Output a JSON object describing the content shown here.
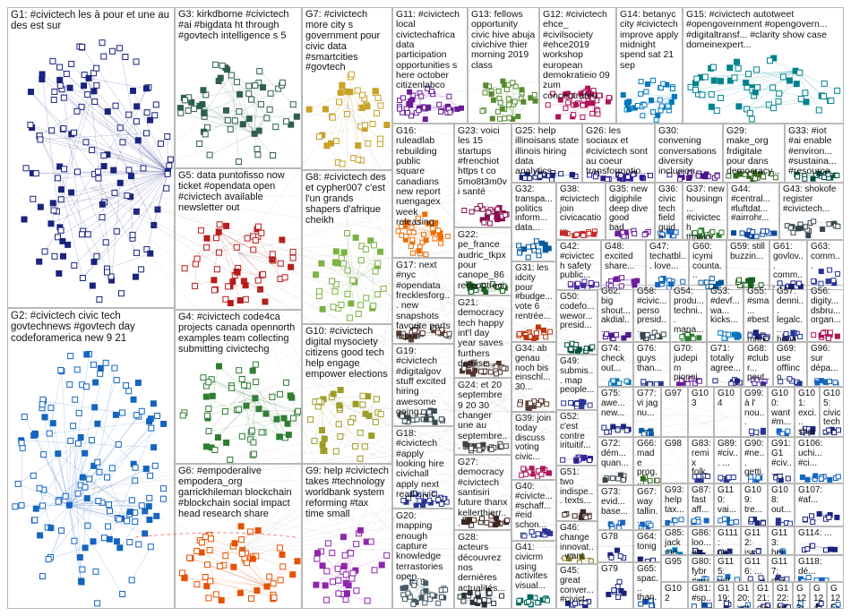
{
  "groups": [
    {
      "id": "G1",
      "label": "G1: #civictech les à pour et une au des est sur",
      "color": "#1a237e"
    },
    {
      "id": "G2",
      "label": "G2: #civictech civic tech govtechnews #govtech day codeforamerica new 9 21",
      "color": "#1565c0"
    },
    {
      "id": "G3",
      "label": "G3: kirkdborne #civictech #ai #bigdata ht through #govtech intelligence s 5",
      "color": "#2e5e4e"
    },
    {
      "id": "G4",
      "label": "G4: #civictech code4ca projects canada opennorth examples team collecting submitting civictechg",
      "color": "#2e7d32"
    },
    {
      "id": "G5",
      "label": "G5: data puntofisso now ticket #opendata open #civictech available newsletter out",
      "color": "#b71c1c"
    },
    {
      "id": "G6",
      "label": "G6: #empoderalive empodera_org garrickhileman blockchain #blockchain social impact head research share",
      "color": "#e65100"
    },
    {
      "id": "G7",
      "label": "G7: #civictech more city s government pour civic data #smartcities #govtech",
      "color": "#c9a227"
    },
    {
      "id": "G8",
      "label": "G8: #civictech des et cypher007 c'est l'un grands shapers d'afrique cheikh",
      "color": "#7cb342"
    },
    {
      "id": "G9",
      "label": "G9: help #civictech takes #technology worldbank system reforming #tax time small",
      "color": "#8e24aa"
    },
    {
      "id": "G10",
      "label": "G10: #civictech digital mysociety citizens good tech help engage empower elections",
      "color": "#9e9d24"
    },
    {
      "id": "G11",
      "label": "G11: #civictech local civictechafrica data participation opportunities s here october citizenlabco",
      "color": "#6a1b9a"
    },
    {
      "id": "G12",
      "label": "G12: #civictech ehce_ #civilsociety #ehce2019 workshop european demokratieio 09 zum concentrated",
      "color": "#ad1457"
    },
    {
      "id": "G13",
      "label": "G13: fellows opportunity civic hive abuja civichive thier morning 2019 class",
      "color": "#558b2f"
    },
    {
      "id": "G14",
      "label": "G14: betanyc city #civictech improve apply midnight spend sat 21 sep",
      "color": "#0277bd"
    },
    {
      "id": "G15",
      "label": "G15: #civictech autotweet #opengovernment #opengovern... #digitaltransf... #clarity show case domeinexpert...",
      "color": "#00838f"
    },
    {
      "id": "G16",
      "label": "G16: ruleadlab rebuilding public square canadians new report ruengagex week releasing",
      "color": "#ef6c00"
    },
    {
      "id": "G17",
      "label": "G17: next #nyc #opendata frecklesforg... new snapshots favorite parts report",
      "color": "#5d4037"
    },
    {
      "id": "G18",
      "label": "G18: #civictech #apply looking hire civichall apply next read civic...",
      "color": "#283593"
    },
    {
      "id": "G19",
      "label": "G19: #civictech #digitalgov stuff excited hiring awesome going...",
      "color": "#37474f"
    },
    {
      "id": "G20",
      "label": "G20: mapping enough capture knowledge terrastories open...",
      "color": "#455a64"
    },
    {
      "id": "G21",
      "label": "G21: democracy tech happy int'l day year saves furthers demise...",
      "color": "#4e342e"
    },
    {
      "id": "G22",
      "label": "G22: pe_france audric_tkpx pour canope_86 rencontreci... europarl_fr...",
      "color": "#1b5e20"
    },
    {
      "id": "G23",
      "label": "G23: voici les 15 startups #frenchiot https t co 5mo8t3m0vi santé",
      "color": "#880e4f"
    },
    {
      "id": "G24",
      "label": "G24: et 20 septembre 9 20 30 changer une au septembre...",
      "color": "#424242"
    },
    {
      "id": "G25",
      "label": "G25: help illinoisans state illinois hiring data analytics...",
      "color": "#1a237e"
    },
    {
      "id": "G26",
      "label": "G26: les sociaux et #civictech sont au coeur transformatio...",
      "color": "#311b92"
    },
    {
      "id": "G27",
      "label": "G27: democracy #civictech santisiri future thanx kellerthierr...",
      "color": "#3e2723"
    },
    {
      "id": "G28",
      "label": "G28: acteurs découvrez nos dernières actualités...",
      "color": "#263238"
    },
    {
      "id": "G29",
      "label": "G29: make_org frdigitale pour dans democracy...",
      "color": "#33691e"
    },
    {
      "id": "G30",
      "label": "G30: convening conversations diversity inclusion...",
      "color": "#4a148c"
    },
    {
      "id": "G31",
      "label": "G31: les idcity pour #budge... vote 6 rentrée...",
      "color": "#bf360c"
    },
    {
      "id": "G32",
      "label": "G32: transpa... politics inform... data...",
      "color": "#01579b"
    },
    {
      "id": "G33",
      "label": "G33: #iot #ai enable #environ... #sustaina... #resource...",
      "color": "#004d40"
    },
    {
      "id": "G34",
      "label": "G34: ab genau noch bis einschl... 30...",
      "color": "#5d4037"
    },
    {
      "id": "G35",
      "label": "G35: new digiphile deep dive good bad...",
      "color": "#6a1b9a"
    },
    {
      "id": "G36",
      "label": "G36: civic tech field guide crowdso...",
      "color": "#1565c0"
    },
    {
      "id": "G37",
      "label": "G37: new housingn... #civictech thanks...",
      "color": "#2e7d32"
    },
    {
      "id": "G38",
      "label": "G38: #civictech join civicacatio...",
      "color": "#c62828"
    },
    {
      "id": "G39",
      "label": "G39: join today discuss voting civic...",
      "color": "#ad1457"
    },
    {
      "id": "G40",
      "label": "G40: #civicte... #schaff... #eid schon...",
      "color": "#283593"
    },
    {
      "id": "G41",
      "label": "G41: civicrm using activites visual...",
      "color": "#00695c"
    },
    {
      "id": "G42",
      "label": "G42: #civictech safety public...",
      "color": "#4527a0"
    },
    {
      "id": "G43",
      "label": "G43: shokofe register #civictech...",
      "color": "#37474f"
    },
    {
      "id": "G44",
      "label": "G44: #central... #luftdat... #airrohr...",
      "color": "#0d47a1"
    },
    {
      "id": "G45",
      "label": "G45: great conver... #civict...",
      "color": "#1a237e"
    },
    {
      "id": "G46",
      "label": "G46: change innovat... want...",
      "color": "#827717"
    },
    {
      "id": "G47",
      "label": "G47: techatbl... love...",
      "color": "#1565c0"
    },
    {
      "id": "G48",
      "label": "G48: excited share...",
      "color": "#6a1b9a"
    },
    {
      "id": "G49",
      "label": "G49: submis... map people...",
      "color": "#283593"
    },
    {
      "id": "G50",
      "label": "G50: codefo... wewor... presid...",
      "color": "#004d40"
    },
    {
      "id": "G51",
      "label": "G51: two indispe... texts...",
      "color": "#3e2723"
    },
    {
      "id": "G52",
      "label": "G52: c'est contre irituitif...",
      "color": "#311b92"
    },
    {
      "id": "G53",
      "label": "G53: #devf... wa... kicks...",
      "color": "#0277bd"
    },
    {
      "id": "G54",
      "label": "G54: produ... techni... mana...",
      "color": "#2e7d32"
    },
    {
      "id": "G55",
      "label": "G55: #sma... #best... mark...",
      "color": "#1a237e"
    },
    {
      "id": "G56",
      "label": "G56: digity... dsbru... organ...",
      "color": "#ad1457"
    },
    {
      "id": "G57",
      "label": "G57: denni... legalc... boba...",
      "color": "#283593"
    },
    {
      "id": "G58",
      "label": "G58: #civic... perso presid...",
      "color": "#37474f"
    },
    {
      "id": "G59",
      "label": "G59: still buzzin...",
      "color": "#1b5e20"
    },
    {
      "id": "G60",
      "label": "G60: icymi counta...",
      "color": "#01579b"
    },
    {
      "id": "G61",
      "label": "G61: govlov... comm...",
      "color": "#1a237e"
    },
    {
      "id": "G62",
      "label": "G62: big shout... akdial...",
      "color": "#4a148c"
    },
    {
      "id": "G63",
      "label": "G63: comm...",
      "color": "#283593"
    },
    {
      "id": "G64",
      "label": "G64: tonig... amr...",
      "color": "#1a237e"
    },
    {
      "id": "G65",
      "label": "G65: spac... than...",
      "color": "#0d47a1"
    },
    {
      "id": "G66",
      "label": "G66: made prog...",
      "color": "#33691e"
    },
    {
      "id": "G67",
      "label": "G67: way tallin...",
      "color": "#1565c0"
    },
    {
      "id": "G68",
      "label": "G68: #clubr... peut...",
      "color": "#4527a0"
    },
    {
      "id": "G69",
      "label": "G69: use offlinco...",
      "color": "#283593"
    },
    {
      "id": "G70",
      "label": "G70: judepim pionni...",
      "color": "#6a1b9a"
    },
    {
      "id": "G71",
      "label": "G71: totally agree...",
      "color": "#1a237e"
    },
    {
      "id": "G72",
      "label": "G72: dém... quan...",
      "color": "#37474f"
    },
    {
      "id": "G73",
      "label": "G73: evid... base...",
      "color": "#1565c0"
    },
    {
      "id": "G74",
      "label": "G74: check out...",
      "color": "#0277bd"
    },
    {
      "id": "G75",
      "label": "G75: awe... new...",
      "color": "#1a237e"
    },
    {
      "id": "G76",
      "label": "G76: guys than...",
      "color": "#283593"
    },
    {
      "id": "G77",
      "label": "G77: vi jag nu...",
      "color": "#01579b"
    },
    {
      "id": "G78",
      "label": "G78",
      "color": "#1a237e"
    },
    {
      "id": "G79",
      "label": "G79",
      "color": "#1a237e"
    },
    {
      "id": "G80",
      "label": "G80: fybr #sm...",
      "color": "#1565c0"
    },
    {
      "id": "G81",
      "label": "G81: #sp... #civ...",
      "color": "#0d47a1"
    },
    {
      "id": "G82",
      "label": "G82: remix folk...",
      "color": "#1a237e"
    },
    {
      "id": "G83",
      "label": "G83: remix folk...",
      "color": "#283593"
    },
    {
      "id": "G84",
      "label": "G84: one valu...",
      "color": "#1565c0"
    },
    {
      "id": "G85",
      "label": "G85: jack mo...",
      "color": "#0277bd"
    },
    {
      "id": "G86",
      "label": "G86: loo... ew...",
      "color": "#1a237e"
    },
    {
      "id": "G87",
      "label": "G87: fast aff...",
      "color": "#1565c0"
    },
    {
      "id": "G88",
      "label": "G88",
      "color": "#1a237e"
    },
    {
      "id": "G89",
      "label": "G89: #civ... ...",
      "color": "#283593"
    },
    {
      "id": "G90",
      "label": "G90: #ne... getti...",
      "color": "#1565c0"
    },
    {
      "id": "G91",
      "label": "G91: G1 #civ... ...",
      "color": "#1a237e"
    },
    {
      "id": "G92",
      "label": "G92",
      "color": "#0d47a1"
    },
    {
      "id": "G93",
      "label": "G93: help tax...",
      "color": "#1565c0"
    },
    {
      "id": "G94",
      "label": "G94",
      "color": "#1a237e"
    },
    {
      "id": "G95",
      "label": "G95",
      "color": "#283593"
    },
    {
      "id": "G96",
      "label": "G96: sur dépa...",
      "color": "#1565c0"
    },
    {
      "id": "G97",
      "label": "G97",
      "color": "#1a237e"
    },
    {
      "id": "G98",
      "label": "G98",
      "color": "#1a237e"
    },
    {
      "id": "G99",
      "label": "G99: à l' nou...",
      "color": "#283593"
    },
    {
      "id": "G100",
      "label": "G100: want #m...",
      "color": "#1565c0"
    },
    {
      "id": "G101",
      "label": "G101: exci... shar...",
      "color": "#1a237e"
    },
    {
      "id": "G102",
      "label": "G102",
      "color": "#1a237e"
    },
    {
      "id": "G103",
      "label": "G103",
      "color": "#283593"
    },
    {
      "id": "G104",
      "label": "G104",
      "color": "#1565c0"
    },
    {
      "id": "G105",
      "label": "G105: civic tech...",
      "color": "#1a237e"
    },
    {
      "id": "G106",
      "label": "G106: uchi... #ci...",
      "color": "#1565c0"
    },
    {
      "id": "G107",
      "label": "G107: #af...",
      "color": "#1a237e"
    },
    {
      "id": "G108",
      "label": "G108: out...",
      "color": "#283593"
    },
    {
      "id": "G109",
      "label": "G109: tre...",
      "color": "#1a237e"
    },
    {
      "id": "G110",
      "label": "G110: vai...",
      "color": "#1565c0"
    },
    {
      "id": "G111",
      "label": "G111: pa...",
      "color": "#1a237e"
    },
    {
      "id": "G112",
      "label": "G112: iss...",
      "color": "#283593"
    },
    {
      "id": "G113",
      "label": "G113: hel...",
      "color": "#1565c0"
    },
    {
      "id": "G114",
      "label": "G114: ...",
      "color": "#1a237e"
    },
    {
      "id": "G115",
      "label": "G115: net...",
      "color": "#1565c0"
    },
    {
      "id": "G116",
      "label": "G116: ...",
      "color": "#1a237e"
    },
    {
      "id": "G117",
      "label": "G117: dré...",
      "color": "#283593"
    },
    {
      "id": "G118",
      "label": "G118: dé...",
      "color": "#1565c0"
    },
    {
      "id": "G119",
      "label": "G119: ...",
      "color": "#1a237e"
    },
    {
      "id": "G120",
      "label": "G120: vot...",
      "color": "#1565c0"
    },
    {
      "id": "G121",
      "label": "G121: clé...",
      "color": "#1a237e"
    },
    {
      "id": "G122",
      "label": "G122: let'...",
      "color": "#283593"
    },
    {
      "id": "G123",
      "label": "G123: ...",
      "color": "#1565c0"
    },
    {
      "id": "G124",
      "label": "G124: lm...",
      "color": "#1a237e"
    },
    {
      "id": "G125",
      "label": "G125: ...",
      "color": "#1565c0"
    },
    {
      "id": "G126",
      "label": "G126: #civ...",
      "color": "#1a237e"
    },
    {
      "id": "G127",
      "label": "G127: ...",
      "color": "#283593"
    },
    {
      "id": "G128",
      "label": "G128: nc...",
      "color": "#1565c0"
    },
    {
      "id": "G129",
      "label": "G129: ...",
      "color": "#1a237e"
    }
  ]
}
